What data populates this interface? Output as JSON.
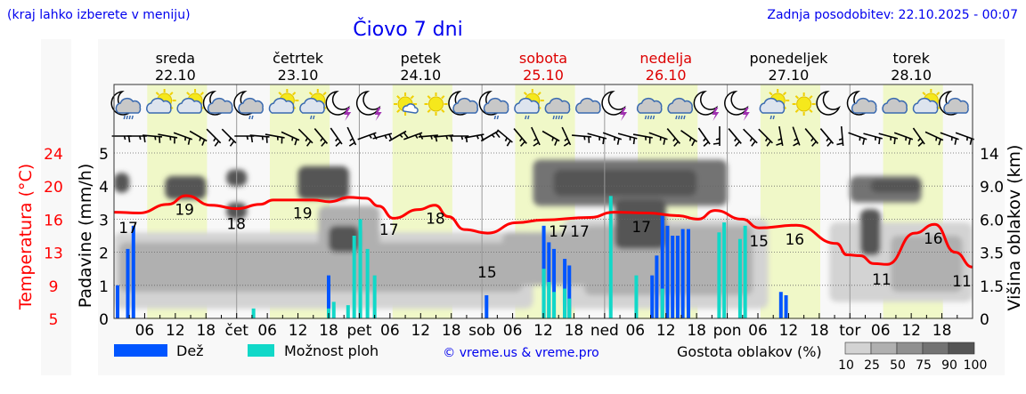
{
  "header": {
    "region_note": "(kraj lahko izberete v meniju)",
    "title": "Čiovo 7 dni",
    "updated": "Zadnja posodobitev: 22.10.2025 - 00:07"
  },
  "colors": {
    "rain": "#0055ff",
    "shower": "#11d8c8",
    "temperature": "#ff0000",
    "weekend": "#dd0000",
    "daylight": "#f0f8c8",
    "panel": "#f8f8f8",
    "link": "#0000ee",
    "cloud_scale": [
      "#d3d3d3",
      "#b0b0b0",
      "#909090",
      "#737373",
      "#555555"
    ]
  },
  "days": [
    {
      "name": "sreda",
      "date": "22.10",
      "weekend": false,
      "icons": [
        "moon-cloud-rain-icon",
        "sun-cloud-icon",
        "sun-cloud-icon",
        "moon-cloud-icon"
      ]
    },
    {
      "name": "četrtek",
      "date": "23.10",
      "weekend": false,
      "icons": [
        "moon-cloud-drizzle-icon",
        "sun-cloud-icon",
        "sun-cloud-drizzle-icon",
        "moon-thunder-icon"
      ]
    },
    {
      "name": "petek",
      "date": "24.10",
      "weekend": false,
      "icons": [
        "moon-thunder-icon",
        "sun-small-cloud-icon",
        "sun-icon",
        "moon-cloud-icon"
      ]
    },
    {
      "name": "sobota",
      "date": "25.10",
      "weekend": true,
      "icons": [
        "moon-cloud-drizzle-icon",
        "sun-cloud-drizzle-icon",
        "cloud-rain-icon",
        "cloud-icon"
      ]
    },
    {
      "name": "nedelja",
      "date": "26.10",
      "weekend": true,
      "icons": [
        "moon-thunder-icon",
        "cloud-rain-icon",
        "cloud-rain-icon",
        "moon-thunder-icon"
      ]
    },
    {
      "name": "ponedeljek",
      "date": "27.10",
      "weekend": false,
      "icons": [
        "moon-thunder-icon",
        "sun-cloud-drizzle-icon",
        "sun-icon",
        "moon-icon"
      ]
    },
    {
      "name": "torek",
      "date": "28.10",
      "weekend": false,
      "icons": [
        "moon-cloud-icon",
        "cloud-icon",
        "sun-cloud-icon",
        "moon-cloud-icon"
      ]
    }
  ],
  "legend": {
    "rain": "Dež",
    "shower": "Možnost ploh",
    "credit": "© vreme.us & vreme.pro",
    "cloud_density": "Gostota oblakov (%)",
    "cloud_density_ticks": [
      "10",
      "25",
      "50",
      "75",
      "90",
      "100"
    ]
  },
  "chart_data": {
    "type": "meteogram",
    "title": "Čiovo 7 dni",
    "x_unit": "hours since 22.10 00:00",
    "xlim": [
      0,
      168
    ],
    "x_ticks": [
      {
        "h": 6,
        "label": "06"
      },
      {
        "h": 12,
        "label": "12"
      },
      {
        "h": 18,
        "label": "18"
      },
      {
        "h": 24,
        "label": "čet"
      },
      {
        "h": 30,
        "label": "06"
      },
      {
        "h": 36,
        "label": "12"
      },
      {
        "h": 42,
        "label": "18"
      },
      {
        "h": 48,
        "label": "pet"
      },
      {
        "h": 54,
        "label": "06"
      },
      {
        "h": 60,
        "label": "12"
      },
      {
        "h": 66,
        "label": "18"
      },
      {
        "h": 72,
        "label": "sob"
      },
      {
        "h": 78,
        "label": "06"
      },
      {
        "h": 84,
        "label": "12"
      },
      {
        "h": 90,
        "label": "18"
      },
      {
        "h": 96,
        "label": "ned"
      },
      {
        "h": 102,
        "label": "06"
      },
      {
        "h": 108,
        "label": "12"
      },
      {
        "h": 114,
        "label": "18"
      },
      {
        "h": 120,
        "label": "pon"
      },
      {
        "h": 126,
        "label": "06"
      },
      {
        "h": 132,
        "label": "12"
      },
      {
        "h": 138,
        "label": "18"
      },
      {
        "h": 144,
        "label": "tor"
      },
      {
        "h": 150,
        "label": "06"
      },
      {
        "h": 156,
        "label": "12"
      },
      {
        "h": 162,
        "label": "18"
      }
    ],
    "precip_axis": {
      "label": "Padavine (mm/h)",
      "ylim": [
        0,
        5
      ],
      "ticks": [
        "0",
        "1",
        "2",
        "3",
        "4",
        "5"
      ]
    },
    "temp_axis": {
      "label": "Temperatura (°C)",
      "ylim": [
        5,
        24
      ],
      "ticks": [
        "5",
        "9",
        "13",
        "16",
        "20",
        "24"
      ]
    },
    "cloud_axis": {
      "label": "Višina oblakov (km)",
      "ticks": [
        "0",
        "1.5",
        "3.5",
        "6.0",
        "9.0",
        "14"
      ]
    },
    "daylight_hours": [
      6.5,
      18.2
    ],
    "temperature": [
      [
        0,
        17.2
      ],
      [
        4.8,
        17.1
      ],
      [
        10.6,
        18.1
      ],
      [
        14.1,
        19.1
      ],
      [
        19,
        18.0
      ],
      [
        24.1,
        17.6
      ],
      [
        28.6,
        18.1
      ],
      [
        31.2,
        18.6
      ],
      [
        39,
        18.6
      ],
      [
        42.2,
        18.4
      ],
      [
        46,
        18.9
      ],
      [
        49.3,
        18.8
      ],
      [
        51.8,
        17.9
      ],
      [
        54.7,
        16.5
      ],
      [
        59.6,
        17.5
      ],
      [
        62.8,
        18.0
      ],
      [
        65.4,
        16.7
      ],
      [
        68.6,
        15.2
      ],
      [
        73.1,
        14.8
      ],
      [
        78.8,
        16.0
      ],
      [
        83.9,
        16.3
      ],
      [
        93.2,
        16.6
      ],
      [
        97.8,
        17.2
      ],
      [
        104.4,
        17.1
      ],
      [
        110.3,
        16.8
      ],
      [
        114.3,
        16.4
      ],
      [
        117.6,
        17.4
      ],
      [
        122.9,
        16.4
      ],
      [
        126.2,
        15.4
      ],
      [
        133.5,
        15.7
      ],
      [
        141.4,
        13.6
      ],
      [
        143.4,
        12.3
      ],
      [
        146,
        12.2
      ],
      [
        148.7,
        11.3
      ],
      [
        151.3,
        11.2
      ],
      [
        156.7,
        14.8
      ],
      [
        160.6,
        15.8
      ],
      [
        164.6,
        12.6
      ],
      [
        168,
        10.9
      ]
    ],
    "temperature_labels": [
      {
        "h": 2.8,
        "t": 15.4,
        "text": "17"
      },
      {
        "h": 13.8,
        "t": 17.5,
        "text": "19"
      },
      {
        "h": 23.9,
        "t": 15.9,
        "text": "18"
      },
      {
        "h": 36.9,
        "t": 17.1,
        "text": "19"
      },
      {
        "h": 53.8,
        "t": 15.2,
        "text": "17"
      },
      {
        "h": 62.9,
        "t": 16.5,
        "text": "18"
      },
      {
        "h": 73,
        "t": 10.3,
        "text": "15"
      },
      {
        "h": 87,
        "t": 15.0,
        "text": "17"
      },
      {
        "h": 91.1,
        "t": 15.0,
        "text": "17"
      },
      {
        "h": 103.2,
        "t": 15.5,
        "text": "17"
      },
      {
        "h": 126.2,
        "t": 13.9,
        "text": "15"
      },
      {
        "h": 133.2,
        "t": 14.1,
        "text": "16"
      },
      {
        "h": 150.2,
        "t": 9.5,
        "text": "11"
      },
      {
        "h": 160.3,
        "t": 14.2,
        "text": "16"
      },
      {
        "h": 168.4,
        "t": 9.3,
        "text": "11"
      }
    ],
    "precipitation": [
      {
        "h": 0.7,
        "rain": 1.0,
        "shower": 0
      },
      {
        "h": 2.7,
        "rain": 2.1,
        "shower": 0
      },
      {
        "h": 3.8,
        "rain": 2.8,
        "shower": 0
      },
      {
        "h": 27.3,
        "rain": 0,
        "shower": 0.3
      },
      {
        "h": 42,
        "rain": 1.3,
        "shower": 0.3
      },
      {
        "h": 43,
        "rain": 0,
        "shower": 0.5
      },
      {
        "h": 45.8,
        "rain": 0,
        "shower": 0.4
      },
      {
        "h": 47,
        "rain": 0,
        "shower": 2.5
      },
      {
        "h": 48.2,
        "rain": 0,
        "shower": 3.0
      },
      {
        "h": 49.6,
        "rain": 0,
        "shower": 2.1
      },
      {
        "h": 51,
        "rain": 0,
        "shower": 1.3
      },
      {
        "h": 72.9,
        "rain": 0.7,
        "shower": 0
      },
      {
        "h": 84.1,
        "rain": 2.8,
        "shower": 1.5
      },
      {
        "h": 85.1,
        "rain": 2.3,
        "shower": 1.1
      },
      {
        "h": 86.1,
        "rain": 2.1,
        "shower": 0.8
      },
      {
        "h": 88.2,
        "rain": 1.8,
        "shower": 0.9
      },
      {
        "h": 89.1,
        "rain": 1.6,
        "shower": 0.6
      },
      {
        "h": 97.2,
        "rain": 0,
        "shower": 3.7
      },
      {
        "h": 102.2,
        "rain": 0,
        "shower": 1.3
      },
      {
        "h": 105.3,
        "rain": 1.3,
        "shower": 0
      },
      {
        "h": 106.2,
        "rain": 1.9,
        "shower": 0
      },
      {
        "h": 107.3,
        "rain": 3.1,
        "shower": 0.9
      },
      {
        "h": 108.3,
        "rain": 2.8,
        "shower": 0
      },
      {
        "h": 109.3,
        "rain": 2.5,
        "shower": 0
      },
      {
        "h": 110.3,
        "rain": 2.5,
        "shower": 0
      },
      {
        "h": 111.3,
        "rain": 2.7,
        "shower": 0
      },
      {
        "h": 112.4,
        "rain": 2.7,
        "shower": 0
      },
      {
        "h": 118.4,
        "rain": 0,
        "shower": 2.6
      },
      {
        "h": 119.4,
        "rain": 0,
        "shower": 2.9
      },
      {
        "h": 122.5,
        "rain": 0,
        "shower": 2.4
      },
      {
        "h": 123.5,
        "rain": 0,
        "shower": 2.8
      },
      {
        "h": 130.5,
        "rain": 0.8,
        "shower": 0
      },
      {
        "h": 131.5,
        "rain": 0.7,
        "shower": 0
      }
    ],
    "cloud_areas": [
      {
        "h0": 0,
        "h1": 82,
        "lo": 0.3,
        "hi": 2.6,
        "density": 25
      },
      {
        "h0": 88,
        "h1": 128,
        "lo": 0.3,
        "hi": 3.0,
        "density": 25
      },
      {
        "h0": 140,
        "h1": 168,
        "lo": 0.5,
        "hi": 2.9,
        "density": 25
      },
      {
        "h0": 1,
        "h1": 80,
        "lo": 0.8,
        "hi": 2.3,
        "density": 50
      },
      {
        "h0": 76,
        "h1": 94,
        "lo": 1.0,
        "hi": 2.6,
        "density": 50
      },
      {
        "h0": 92,
        "h1": 125,
        "lo": 0.7,
        "hi": 2.8,
        "density": 50
      },
      {
        "h0": 152,
        "h1": 166,
        "lo": 0.8,
        "hi": 2.5,
        "density": 50
      },
      {
        "h0": 40,
        "h1": 52,
        "lo": 1.2,
        "hi": 3.4,
        "density": 50
      },
      {
        "h0": 82,
        "h1": 120,
        "lo": 3.4,
        "hi": 4.8,
        "density": 75
      },
      {
        "h0": 144,
        "h1": 158,
        "lo": 3.5,
        "hi": 4.3,
        "density": 75
      },
      {
        "h0": 0,
        "h1": 3,
        "lo": 3.8,
        "hi": 4.4,
        "density": 90
      },
      {
        "h0": 10,
        "h1": 18,
        "lo": 3.6,
        "hi": 4.3,
        "density": 90
      },
      {
        "h0": 22,
        "h1": 26,
        "lo": 4.0,
        "hi": 4.5,
        "density": 90
      },
      {
        "h0": 22,
        "h1": 26,
        "lo": 3.0,
        "hi": 3.5,
        "density": 90
      },
      {
        "h0": 36,
        "h1": 46,
        "lo": 3.6,
        "hi": 4.6,
        "density": 90
      },
      {
        "h0": 42,
        "h1": 48,
        "lo": 2.0,
        "hi": 2.8,
        "density": 90
      },
      {
        "h0": 86,
        "h1": 114,
        "lo": 3.7,
        "hi": 4.5,
        "density": 90
      },
      {
        "h0": 98,
        "h1": 108,
        "lo": 2.1,
        "hi": 3.6,
        "density": 90
      },
      {
        "h0": 146,
        "h1": 150,
        "lo": 1.9,
        "hi": 3.3,
        "density": 90
      },
      {
        "h0": 148,
        "h1": 158,
        "lo": 3.8,
        "hi": 4.2,
        "density": 90
      }
    ],
    "wind_dir_deg": [
      180,
      180,
      185,
      190,
      200,
      210,
      225,
      225,
      180,
      185,
      190,
      205,
      225,
      230,
      235,
      245,
      160,
      165,
      150,
      160,
      175,
      175,
      180,
      170,
      150,
      220,
      230,
      245,
      210,
      245,
      185,
      195,
      200,
      195,
      190,
      200,
      230,
      215,
      235,
      270,
      230,
      225,
      225,
      260,
      250,
      230,
      230,
      265,
      200,
      195,
      195,
      200,
      235,
      205,
      200,
      200
    ]
  }
}
